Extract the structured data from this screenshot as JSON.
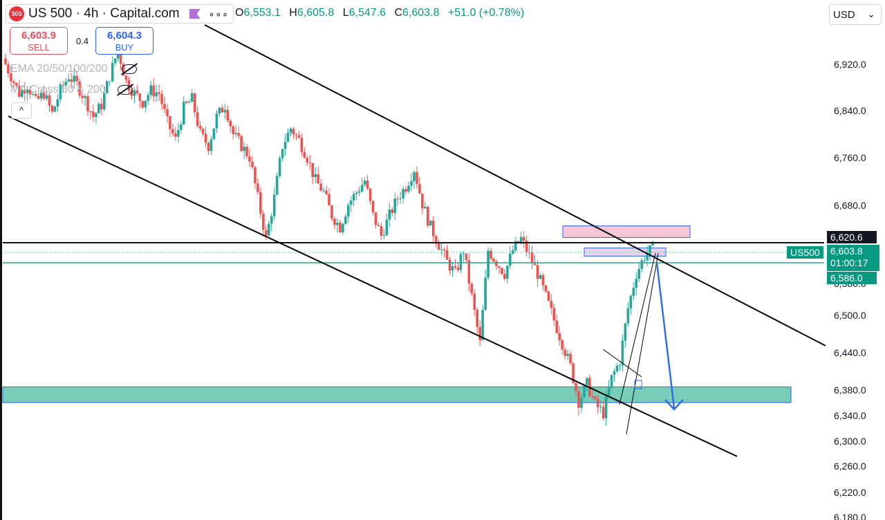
{
  "header": {
    "symbol_badge": "500",
    "title": "US 500 · 4h · Capital.com",
    "more": "∘∘∘"
  },
  "ohlc": {
    "o_key": "O",
    "o": "6,553.1",
    "h_key": "H",
    "h": "6,605.8",
    "l_key": "L",
    "l": "6,547.6",
    "c_key": "C",
    "c": "6,603.8",
    "change": "+51.0 (+0.78%)"
  },
  "trade": {
    "sell_price": "6,603.9",
    "sell_label": "SELL",
    "spread": "0.4",
    "buy_price": "6,604.3",
    "buy_label": "BUY"
  },
  "indicators": {
    "ema": "EMA 20/50/100/200",
    "ma_cross": "MA Cross 50 & 200"
  },
  "collapse": "^",
  "currency": {
    "value": "USD",
    "chevron": "⌄"
  },
  "tags": {
    "level_price": "6,620.6",
    "symbol": "US500",
    "last_price": "6,603.8",
    "countdown": "01:00:17",
    "low_price": "6,586.0"
  },
  "colors": {
    "up": "#26a69a",
    "down": "#ef5350",
    "teal_zone": "#78cdb9",
    "pink_zone": "#f7c6d8",
    "arrow": "#2f6fe4",
    "level_line": "#111111",
    "price_line": "#26a69a"
  },
  "chart_data": {
    "type": "candlestick",
    "title": "US 500 · 4h · Capital.com",
    "price_scale": {
      "range": [
        6180,
        6990
      ],
      "ticks": [
        "6,920.0",
        "6,840.0",
        "6,760.0",
        "6,680.0",
        "6,580.0",
        "6,500.0",
        "6,440.0",
        "6,380.0",
        "6,340.0",
        "6,300.0",
        "6,260.0",
        "6,220.0",
        "6,180.0"
      ],
      "tick_values": [
        6920,
        6840,
        6760,
        6680,
        6580,
        6500,
        6440,
        6380,
        6340,
        6300,
        6260,
        6220,
        6180
      ]
    },
    "last_close": 6603.8,
    "close_path": [
      6930,
      6900,
      6870,
      6885,
      6855,
      6870,
      6835,
      6875,
      6900,
      6885,
      6860,
      6830,
      6850,
      6900,
      6945,
      6890,
      6870,
      6855,
      6875,
      6870,
      6820,
      6790,
      6845,
      6860,
      6800,
      6780,
      6830,
      6850,
      6800,
      6780,
      6760,
      6690,
      6620,
      6690,
      6780,
      6810,
      6790,
      6760,
      6720,
      6700,
      6660,
      6640,
      6680,
      6700,
      6720,
      6660,
      6625,
      6660,
      6690,
      6710,
      6740,
      6680,
      6640,
      6610,
      6580,
      6560,
      6600,
      6520,
      6440,
      6600,
      6580,
      6560,
      6600,
      6620,
      6590,
      6560,
      6520,
      6480,
      6440,
      6400,
      6340,
      6370,
      6335,
      6320,
      6380,
      6410,
      6500,
      6560,
      6590,
      6603.8
    ],
    "levels": [
      {
        "label": "6,620.6",
        "value": 6620.6
      },
      {
        "label": "6,586.0",
        "value": 6586.0
      }
    ],
    "zones": [
      {
        "name": "demand",
        "from": 6338,
        "to": 6365
      },
      {
        "name": "supply",
        "from": 6622,
        "to": 6642
      },
      {
        "name": "retest",
        "from": 6590,
        "to": 6604
      }
    ],
    "channel": {
      "upper": [
        [
          0.23,
          6980
        ],
        [
          0.935,
          6450
        ]
      ],
      "lower": [
        [
          0.01,
          6845
        ],
        [
          0.83,
          6270
        ]
      ]
    },
    "projection_target": 6352,
    "grid": false
  }
}
